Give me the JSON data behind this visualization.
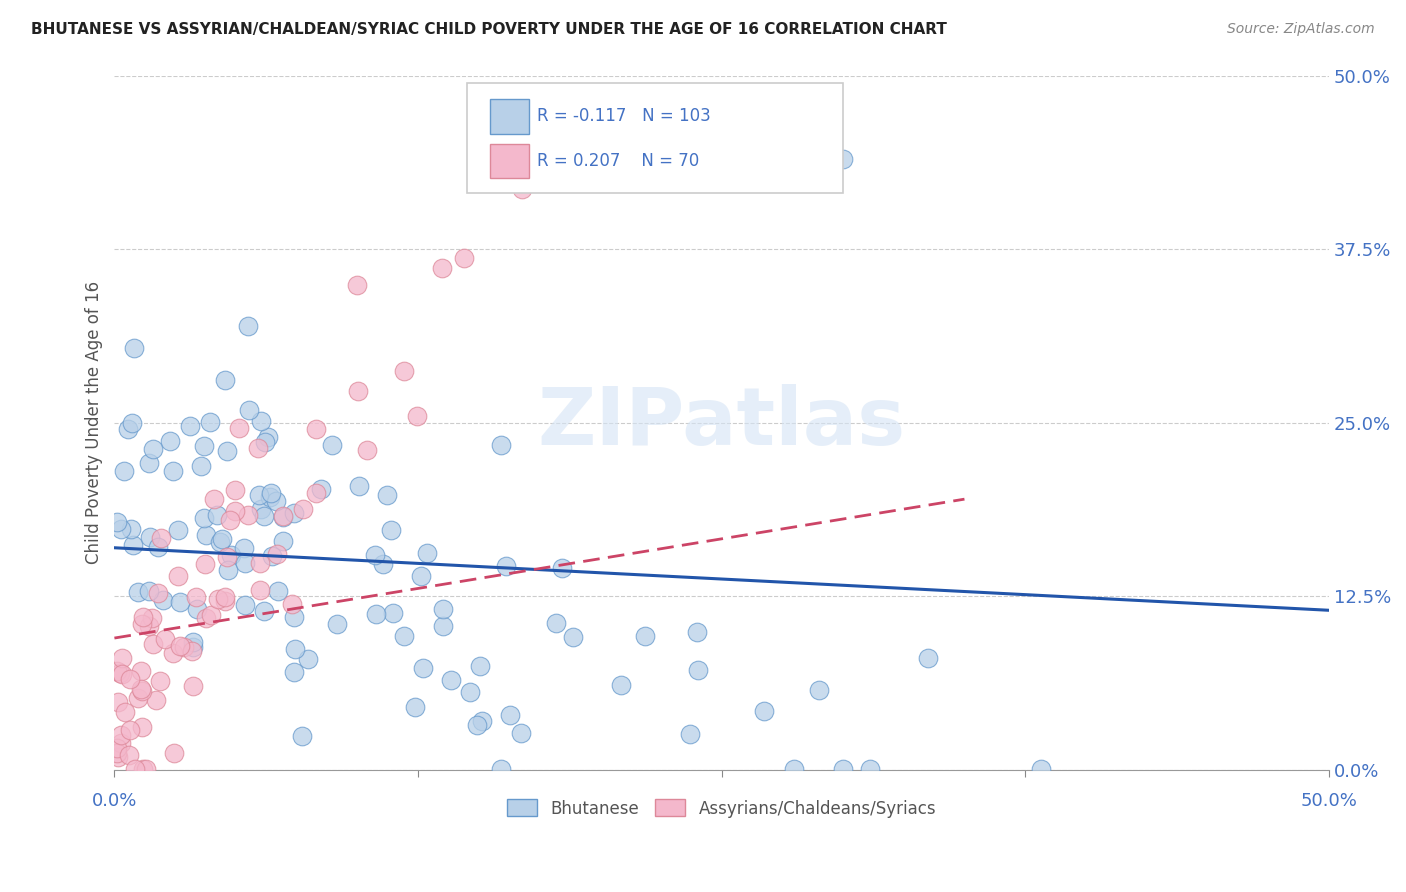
{
  "title": "BHUTANESE VS ASSYRIAN/CHALDEAN/SYRIAC CHILD POVERTY UNDER THE AGE OF 16 CORRELATION CHART",
  "source": "Source: ZipAtlas.com",
  "ylabel": "Child Poverty Under the Age of 16",
  "yticks": [
    0.0,
    0.125,
    0.25,
    0.375,
    0.5
  ],
  "ytick_labels": [
    "0.0%",
    "12.5%",
    "25.0%",
    "37.5%",
    "50.0%"
  ],
  "xlim": [
    0.0,
    0.5
  ],
  "ylim": [
    0.0,
    0.5
  ],
  "blue_R": -0.117,
  "blue_N": 103,
  "pink_R": 0.207,
  "pink_N": 70,
  "blue_scatter_color": "#b8d0e8",
  "blue_edge_color": "#6699cc",
  "pink_scatter_color": "#f4b8cc",
  "pink_edge_color": "#dd8899",
  "blue_line_color": "#2255aa",
  "pink_line_color": "#cc4466",
  "legend_label_blue": "Bhutanese",
  "legend_label_pink": "Assyrians/Chaldeans/Syriacs",
  "watermark": "ZIPatlas",
  "text_color": "#4472c4",
  "grid_color": "#cccccc"
}
